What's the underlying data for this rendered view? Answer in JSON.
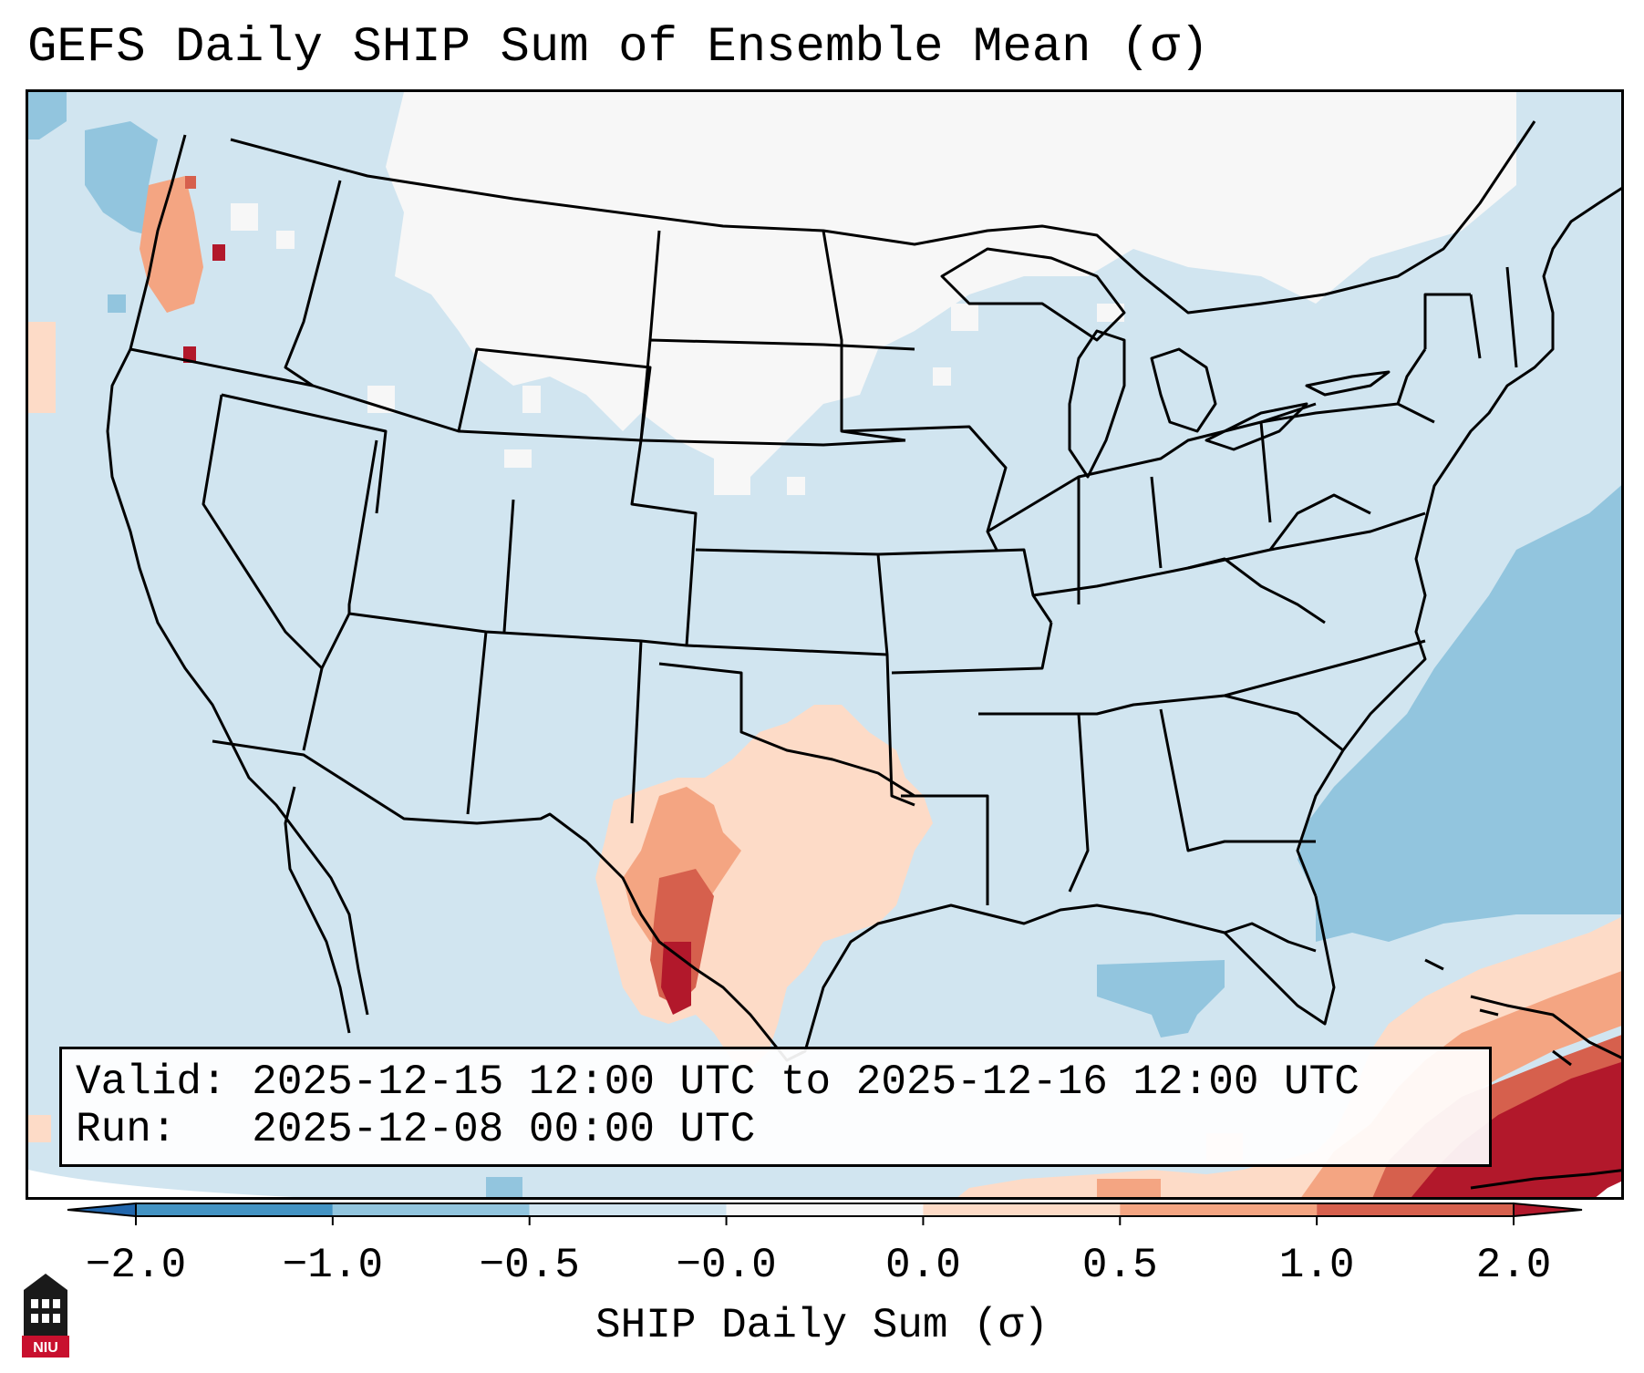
{
  "title": "GEFS Daily SHIP Sum of Ensemble Mean (σ)",
  "info": {
    "valid_label": "Valid:",
    "valid_value": "2025-12-15 12:00 UTC to 2025-12-16 12:00 UTC",
    "run_label": "Run:",
    "run_value": "2025-12-08 00:00 UTC"
  },
  "colorbar": {
    "label": "SHIP Daily Sum (σ)",
    "ticks": [
      "−2.0",
      "−1.0",
      "−0.5",
      "−0.0",
      "0.0",
      "0.5",
      "1.0",
      "2.0"
    ],
    "bins": [
      {
        "range": "below −2.0",
        "color": "#2166ac"
      },
      {
        "range": "−2.0 to −1.0",
        "color": "#4393c3"
      },
      {
        "range": "−1.0 to −0.5",
        "color": "#92c5de"
      },
      {
        "range": "−0.5 to −0.0",
        "color": "#d1e5f0"
      },
      {
        "range": "−0.0 to 0.0",
        "color": "#f7f7f7"
      },
      {
        "range": "0.0 to 0.5",
        "color": "#fddbc7"
      },
      {
        "range": "0.5 to 1.0",
        "color": "#f4a582"
      },
      {
        "range": "1.0 to 2.0",
        "color": "#d6604d"
      },
      {
        "range": "above 2.0",
        "color": "#b2182b"
      }
    ],
    "extend": "both"
  },
  "map": {
    "region": "Continental United States",
    "projection": "Lambert Conformal",
    "borders": [
      "coastlines",
      "state boundaries",
      "international boundaries"
    ]
  },
  "logo": {
    "text": "NIU",
    "name": "Northern Illinois University"
  }
}
